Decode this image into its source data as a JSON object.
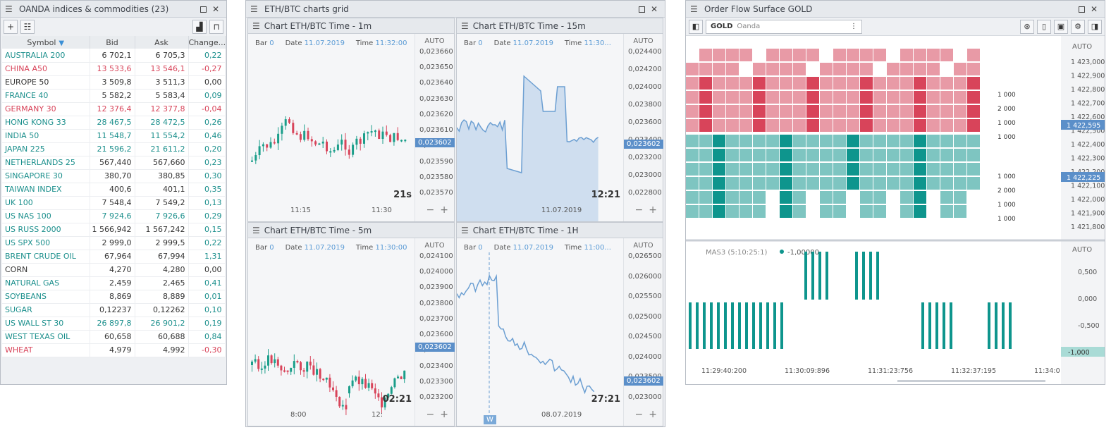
{
  "watchlist": {
    "title": "OANDA indices & commodities (23)",
    "columns": [
      "Symbol",
      "Bid",
      "Ask",
      "Change..."
    ],
    "rows": [
      {
        "s": "AUSTRALIA 200",
        "b": "6 702,1",
        "a": "6 705,3",
        "c": "0,22",
        "d": "up"
      },
      {
        "s": "CHINA A50",
        "b": "13 533,6",
        "a": "13 546,1",
        "c": "-0,27",
        "d": "dn"
      },
      {
        "s": "EUROPE 50",
        "b": "3 509,8",
        "a": "3 511,3",
        "c": "0,00",
        "d": "nt"
      },
      {
        "s": "FRANCE 40",
        "b": "5 582,2",
        "a": "5 583,4",
        "c": "0,09",
        "d": "up"
      },
      {
        "s": "GERMANY 30",
        "b": "12 376,4",
        "a": "12 377,8",
        "c": "-0,04",
        "d": "dn"
      },
      {
        "s": "HONG KONG 33",
        "b": "28 467,5",
        "a": "28 472,5",
        "c": "0,26",
        "d": "up"
      },
      {
        "s": "INDIA 50",
        "b": "11 548,7",
        "a": "11 554,2",
        "c": "0,46",
        "d": "up"
      },
      {
        "s": "JAPAN 225",
        "b": "21 596,2",
        "a": "21 611,2",
        "c": "0,20",
        "d": "up"
      },
      {
        "s": "NETHERLANDS 25",
        "b": "567,440",
        "a": "567,660",
        "c": "0,23",
        "d": "up"
      },
      {
        "s": "SINGAPORE 30",
        "b": "380,70",
        "a": "380,85",
        "c": "0,30",
        "d": "up"
      },
      {
        "s": "TAIWAN INDEX",
        "b": "400,6",
        "a": "401,1",
        "c": "0,35",
        "d": "up"
      },
      {
        "s": "UK 100",
        "b": "7 548,4",
        "a": "7 549,2",
        "c": "0,13",
        "d": "up"
      },
      {
        "s": "US NAS 100",
        "b": "7 924,6",
        "a": "7 926,6",
        "c": "0,29",
        "d": "up"
      },
      {
        "s": "US RUSS 2000",
        "b": "1 566,942",
        "a": "1 567,242",
        "c": "0,15",
        "d": "up"
      },
      {
        "s": "US SPX 500",
        "b": "2 999,0",
        "a": "2 999,5",
        "c": "0,22",
        "d": "up"
      },
      {
        "s": "BRENT CRUDE OIL",
        "b": "67,964",
        "a": "67,994",
        "c": "1,31",
        "d": "up"
      },
      {
        "s": "CORN",
        "b": "4,270",
        "a": "4,280",
        "c": "0,00",
        "d": "nt"
      },
      {
        "s": "NATURAL GAS",
        "b": "2,459",
        "a": "2,465",
        "c": "0,41",
        "d": "up"
      },
      {
        "s": "SOYBEANS",
        "b": "8,869",
        "a": "8,889",
        "c": "0,01",
        "d": "up"
      },
      {
        "s": "SUGAR",
        "b": "0,12237",
        "a": "0,12262",
        "c": "0,10",
        "d": "up"
      },
      {
        "s": "US WALL ST 30",
        "b": "26 897,8",
        "a": "26 901,2",
        "c": "0,19",
        "d": "up"
      },
      {
        "s": "WEST TEXAS OIL",
        "b": "60,658",
        "a": "60,688",
        "c": "0,84",
        "d": "up"
      },
      {
        "s": "WHEAT",
        "b": "4,979",
        "a": "4,992",
        "c": "-0,30",
        "d": "dn"
      }
    ]
  },
  "grid": {
    "title": "ETH/BTC charts grid",
    "charts": [
      {
        "title": "Chart ETH/BTC Time - 1m",
        "bar": "0",
        "date": "11.07.2019",
        "time": "11:32:00",
        "auto": "AUTO",
        "ticks": [
          "0,023660",
          "0,023650",
          "0,023640",
          "0,023630",
          "0,023620",
          "0,023610",
          "0,023600",
          "0,023590",
          "0,023580",
          "0,023570"
        ],
        "cur": "0,023602",
        "timer": "21s",
        "xlabels": [
          "11:15",
          "11:30"
        ]
      },
      {
        "title": "Chart ETH/BTC Time - 15m",
        "bar": "0",
        "date": "11.07.2019",
        "time": "11:30...",
        "auto": "AUTO",
        "ticks": [
          "0,024400",
          "0,024200",
          "0,024000",
          "0,023800",
          "0,023600",
          "0,023400",
          "0,023200",
          "0,023000",
          "0,022800"
        ],
        "cur": "0,023602",
        "timer": "12:21",
        "xlabels": [
          "11.07.2019"
        ]
      },
      {
        "title": "Chart ETH/BTC Time - 5m",
        "bar": "0",
        "date": "11.07.2019",
        "time": "11:30:00",
        "auto": "AUTO",
        "ticks": [
          "0,024100",
          "0,024000",
          "0,023900",
          "0,023800",
          "0,023700",
          "0,023600",
          "0,023500",
          "0,023400",
          "0,023300",
          "0,023200"
        ],
        "cur": "0,023602",
        "timer": "02:21",
        "xlabels": [
          "8:00",
          "12:"
        ]
      },
      {
        "title": "Chart ETH/BTC Time - 1H",
        "bar": "0",
        "date": "11.07.2019",
        "time": "11:00...",
        "auto": "AUTO",
        "ticks": [
          "0,026500",
          "0,026000",
          "0,025500",
          "0,025000",
          "0,024500",
          "0,024000",
          "0,023500",
          "0,023000"
        ],
        "cur": "0,023602",
        "timer": "27:21",
        "xlabels": [
          "08.07.2019"
        ],
        "marker": "W"
      }
    ],
    "labels": {
      "bar": "Bar",
      "date": "Date",
      "time": "Time"
    }
  },
  "orderflow": {
    "title": "Order Flow Surface GOLD",
    "symbol": "GOLD",
    "exchange": "Oanda",
    "auto": "AUTO",
    "price_ticks": [
      "1 423,000",
      "1 422,900",
      "1 422,800",
      "1 422,700",
      "1 422,600",
      "1 422,500",
      "1 422,400",
      "1 422,300",
      "1 422,200",
      "1 422,100",
      "1 422,000",
      "1 421,900",
      "1 421,800"
    ],
    "cur_ask": "1 422,595",
    "cur_bid": "1 422,225",
    "size_labels": [
      "1 000",
      "2 000",
      "1 000",
      "1 000",
      "1 000",
      "2 000",
      "1 000",
      "1 000"
    ],
    "indicator": "MAS3 (5:10:25:1)",
    "indicator_value": "-1,00000",
    "ind_ticks": [
      "0,500",
      "0,000",
      "-0,500"
    ],
    "ind_cur": "-1,000",
    "time_labels": [
      "11:29:40:200",
      "11:30:09:896",
      "11:31:23:756",
      "11:32:37:195",
      "11:34:0"
    ],
    "colors": {
      "ask": "#d8445a",
      "bid": "#0e958d"
    }
  }
}
